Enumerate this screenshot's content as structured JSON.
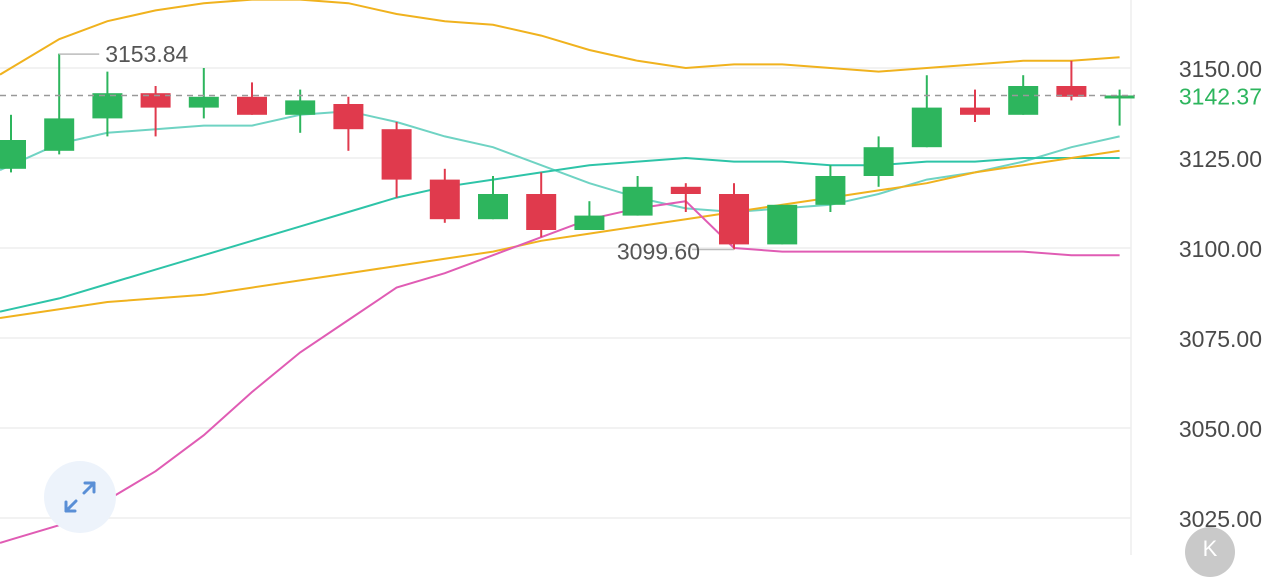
{
  "chart_data": {
    "type": "candlestick",
    "title": "",
    "xlabel": "",
    "ylabel": "",
    "ylim": [
      3020,
      3165
    ],
    "y_ticks": [
      {
        "value": 3150,
        "label": "3150.00"
      },
      {
        "value": 3125,
        "label": "3125.00"
      },
      {
        "value": 3100,
        "label": "3100.00"
      },
      {
        "value": 3075,
        "label": "3075.00"
      },
      {
        "value": 3050,
        "label": "3050.00"
      },
      {
        "value": 3025,
        "label": "3025.00"
      }
    ],
    "grid": true,
    "colors": {
      "up": "#2db55d",
      "down": "#e03a4d",
      "upper_band": "#f0b21e",
      "lower_band": "#f0b21e",
      "middle_band": "#6fd3c3",
      "short_ma": "#2ec4a8",
      "long_ma": "#e05cb4",
      "grid": "#eeeeee",
      "last_price": "#2db55d"
    },
    "candles": [
      {
        "open": 3122,
        "close": 3130,
        "high": 3137,
        "low": 3121
      },
      {
        "open": 3127,
        "close": 3136,
        "high": 3154,
        "low": 3126
      },
      {
        "open": 3136,
        "close": 3143,
        "high": 3149,
        "low": 3131
      },
      {
        "open": 3143,
        "close": 3139,
        "high": 3145,
        "low": 3131
      },
      {
        "open": 3139,
        "close": 3142,
        "high": 3150,
        "low": 3136
      },
      {
        "open": 3142,
        "close": 3137,
        "high": 3146,
        "low": 3137
      },
      {
        "open": 3137,
        "close": 3141,
        "high": 3144,
        "low": 3132
      },
      {
        "open": 3140,
        "close": 3133,
        "high": 3142,
        "low": 3127
      },
      {
        "open": 3133,
        "close": 3119,
        "high": 3135,
        "low": 3114
      },
      {
        "open": 3119,
        "close": 3108,
        "high": 3122,
        "low": 3107
      },
      {
        "open": 3108,
        "close": 3115,
        "high": 3120,
        "low": 3108
      },
      {
        "open": 3115,
        "close": 3105,
        "high": 3121,
        "low": 3103
      },
      {
        "open": 3105,
        "close": 3109,
        "high": 3113,
        "low": 3105
      },
      {
        "open": 3109,
        "close": 3117,
        "high": 3120,
        "low": 3109
      },
      {
        "open": 3117,
        "close": 3115,
        "high": 3118,
        "low": 3110
      },
      {
        "open": 3115,
        "close": 3101,
        "high": 3118,
        "low": 3099.6
      },
      {
        "open": 3101,
        "close": 3112,
        "high": 3112,
        "low": 3101
      },
      {
        "open": 3112,
        "close": 3120,
        "high": 3123,
        "low": 3110
      },
      {
        "open": 3120,
        "close": 3128,
        "high": 3131,
        "low": 3117
      },
      {
        "open": 3128,
        "close": 3139,
        "high": 3148,
        "low": 3128
      },
      {
        "open": 3139,
        "close": 3137,
        "high": 3144,
        "low": 3135
      },
      {
        "open": 3137,
        "close": 3145,
        "high": 3148,
        "low": 3137
      },
      {
        "open": 3145,
        "close": 3142,
        "high": 3152,
        "low": 3141
      },
      {
        "open": 3142,
        "close": 3142.37,
        "high": 3144,
        "low": 3134
      }
    ],
    "series": [
      {
        "key": "upper_band",
        "values": [
          3150,
          3158,
          3163,
          3166,
          3168,
          3169,
          3169,
          3168,
          3165,
          3163,
          3162,
          3159,
          3155,
          3152,
          3150,
          3151,
          3151,
          3150,
          3149,
          3150,
          3151,
          3152,
          3152,
          3153
        ]
      },
      {
        "key": "middle_band",
        "values": [
          3123,
          3129,
          3132,
          3133,
          3134,
          3134,
          3137,
          3138,
          3135,
          3131,
          3128,
          3123,
          3118,
          3114,
          3111,
          3110,
          3111,
          3112,
          3115,
          3119,
          3121,
          3124,
          3128,
          3131
        ]
      },
      {
        "key": "short_ma",
        "values": [
          3083,
          3086,
          3090,
          3094,
          3098,
          3102,
          3106,
          3110,
          3114,
          3117,
          3119,
          3121,
          3123,
          3124,
          3125,
          3124,
          3124,
          3123,
          3123,
          3124,
          3124,
          3125,
          3125,
          3125
        ]
      },
      {
        "key": "lower_band",
        "values": [
          3081,
          3083,
          3085,
          3086,
          3087,
          3089,
          3091,
          3093,
          3095,
          3097,
          3099,
          3102,
          3104,
          3106,
          3108,
          3110,
          3112,
          3114,
          3116,
          3118,
          3121,
          3123,
          3125,
          3127
        ]
      },
      {
        "key": "long_ma",
        "values": [
          3019,
          3023,
          3030,
          3038,
          3048,
          3060,
          3071,
          3080,
          3089,
          3093,
          3098,
          3103,
          3108,
          3111,
          3113,
          3100,
          3099,
          3099,
          3099,
          3099,
          3099,
          3099,
          3098,
          3098
        ]
      }
    ],
    "annotations": {
      "high_label": "3153.84",
      "low_label": "3099.60",
      "last_price": 3142.37,
      "last_price_label": "3142.37"
    }
  },
  "icons": {
    "expand": "expand-arrows-icon",
    "corner": "chevron-icon"
  },
  "corner_button_glyph": "K"
}
